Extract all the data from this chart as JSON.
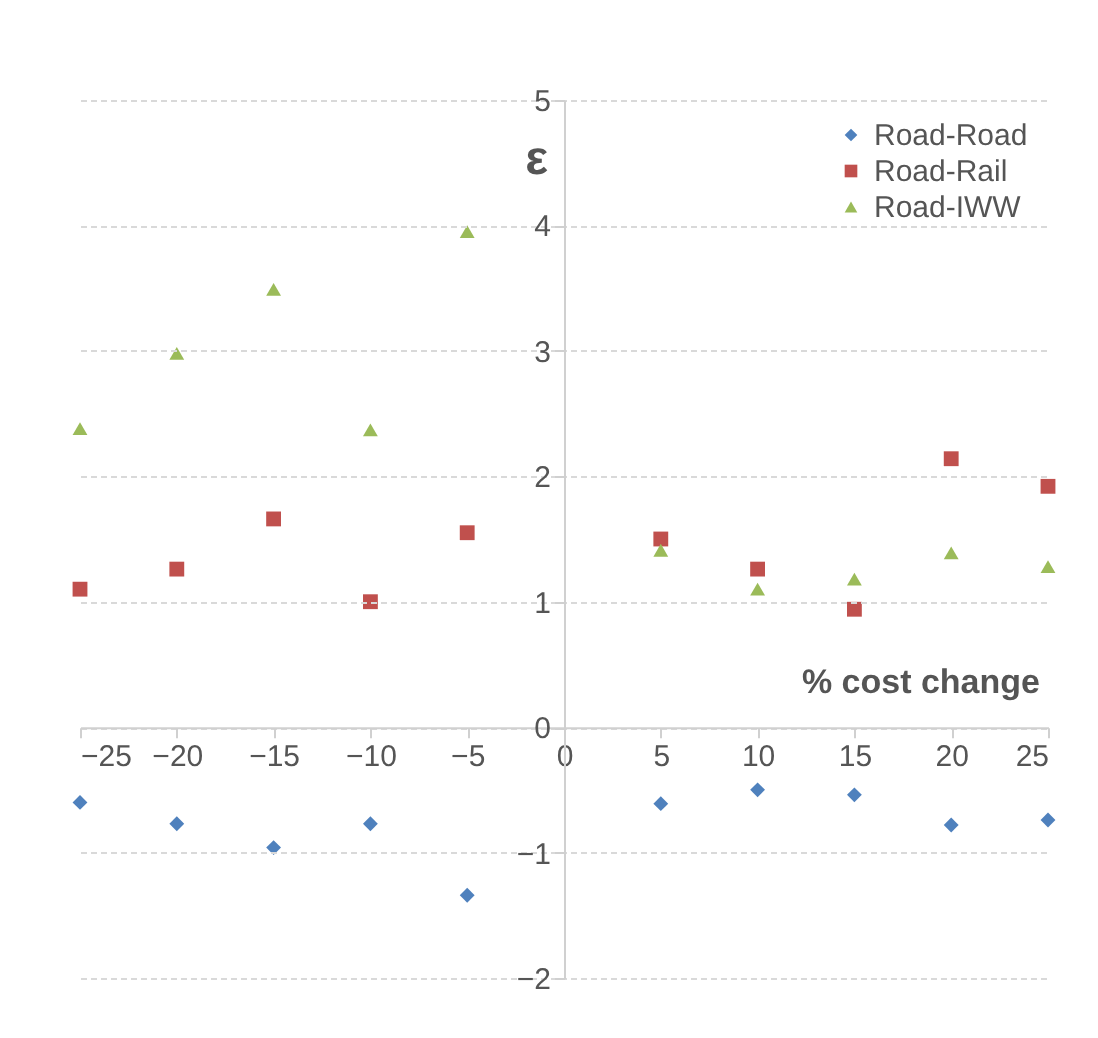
{
  "chart_data": {
    "type": "scatter",
    "xlabel": "% cost change",
    "ylabel": "ε",
    "x": [
      -25,
      -20,
      -15,
      -10,
      -5,
      5,
      10,
      15,
      20,
      25
    ],
    "series": [
      {
        "name": "Road-Road",
        "color": "#4f81bd",
        "marker": "diamond",
        "values": [
          -0.6,
          -0.77,
          -0.96,
          -0.77,
          -1.34,
          -0.61,
          -0.5,
          -0.54,
          -0.78,
          -0.74
        ]
      },
      {
        "name": "Road-Rail",
        "color": "#c0504d",
        "marker": "square",
        "values": [
          1.1,
          1.26,
          1.66,
          1.0,
          1.55,
          1.5,
          1.26,
          0.94,
          2.14,
          1.92
        ]
      },
      {
        "name": "Road-IWW",
        "color": "#9bbb59",
        "marker": "triangle",
        "values": [
          2.38,
          2.98,
          3.49,
          2.37,
          3.95,
          1.41,
          1.1,
          1.18,
          1.39,
          1.28
        ]
      }
    ],
    "xlim": [
      -25,
      25
    ],
    "ylim": [
      -2,
      5
    ],
    "xticks": [
      -25,
      -20,
      -15,
      -10,
      -5,
      0,
      5,
      10,
      15,
      20,
      25
    ],
    "yticks": [
      -2,
      -1,
      0,
      1,
      2,
      3,
      4,
      5
    ],
    "grid": "y",
    "legend": "top right"
  }
}
